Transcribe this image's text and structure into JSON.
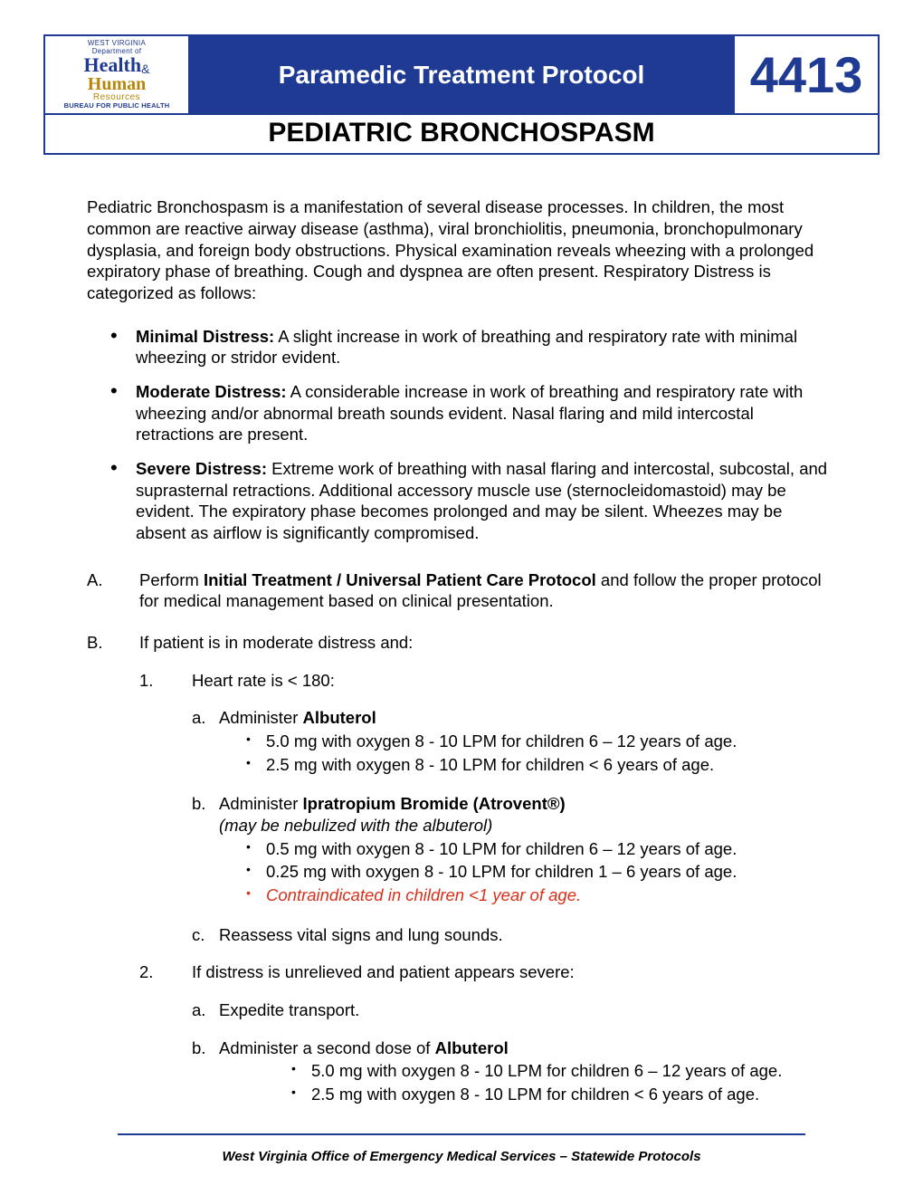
{
  "header": {
    "logo": {
      "dept_line": "WEST VIRGINIA",
      "dept_sub": "Department of",
      "health": "Health",
      "amp": "&",
      "human": "Human",
      "resources": "Resources",
      "bureau": "BUREAU FOR PUBLIC HEALTH"
    },
    "title": "Paramedic Treatment Protocol",
    "number": "4413",
    "subtitle": "PEDIATRIC BRONCHOSPASM",
    "colors": {
      "brand_blue": "#1f3a93",
      "brand_gold": "#b8860b",
      "white": "#ffffff",
      "text": "#000000",
      "warning_red": "#d9301a"
    }
  },
  "intro": "Pediatric Bronchospasm is a manifestation of several disease processes. In children, the most common are reactive airway disease (asthma), viral bronchiolitis, pneumonia, bronchopulmonary dysplasia, and foreign body obstructions. Physical examination reveals wheezing with a prolonged expiratory phase of breathing. Cough and dyspnea are often present. Respiratory Distress is categorized as follows:",
  "distress": [
    {
      "label": "Minimal Distress:",
      "text": " A slight increase in work of breathing and respiratory rate with minimal wheezing or stridor evident."
    },
    {
      "label": "Moderate Distress:",
      "text": " A considerable increase in work of breathing and respiratory rate with wheezing and/or abnormal breath sounds evident. Nasal flaring and mild intercostal retractions are present."
    },
    {
      "label": "Severe Distress:",
      "text": " Extreme work of breathing with nasal flaring and intercostal, subcostal, and suprasternal retractions. Additional accessory muscle use (sternocleidomastoid) may be evident. The expiratory phase becomes prolonged and may be silent. Wheezes may be absent as airflow is significantly compromised."
    }
  ],
  "steps": {
    "A": {
      "letter": "A.",
      "pre": "Perform ",
      "bold": "Initial Treatment / Universal Patient Care Protocol",
      "post": " and follow the proper protocol for medical management based on clinical presentation."
    },
    "B": {
      "letter": "B.",
      "text": "If patient is in moderate distress and:",
      "n1": {
        "num": "1.",
        "text": "Heart rate is < 180:",
        "a": {
          "letter": "a.",
          "pre": "Administer ",
          "bold": "Albuterol",
          "dose1": "5.0 mg with oxygen 8 - 10 LPM for children 6 – 12 years of age.",
          "dose2": "2.5 mg with oxygen 8 - 10 LPM for children < 6 years of age."
        },
        "b": {
          "letter": "b.",
          "pre": "Administer ",
          "bold": "Ipratropium Bromide (Atrovent®)",
          "note": "(may be nebulized with the albuterol)",
          "dose1": "0.5 mg with oxygen 8 - 10 LPM for children 6 – 12 years of age.",
          "dose2": "0.25 mg with oxygen 8 - 10 LPM for children 1 – 6 years of age.",
          "contra": "Contraindicated in children <1 year of age."
        },
        "c": {
          "letter": "c.",
          "text": "Reassess vital signs and lung sounds."
        }
      },
      "n2": {
        "num": "2.",
        "text": "If distress is unrelieved and patient appears severe:",
        "a": {
          "letter": "a.",
          "text": "Expedite transport."
        },
        "b": {
          "letter": "b.",
          "pre": "Administer a second dose of ",
          "bold": "Albuterol",
          "dose1": "5.0 mg with oxygen 8 - 10 LPM for children 6 – 12 years of age.",
          "dose2": "2.5 mg with oxygen 8 - 10 LPM for children < 6 years of age."
        }
      }
    }
  },
  "footer": "West Virginia Office of Emergency Medical Services – Statewide Protocols"
}
